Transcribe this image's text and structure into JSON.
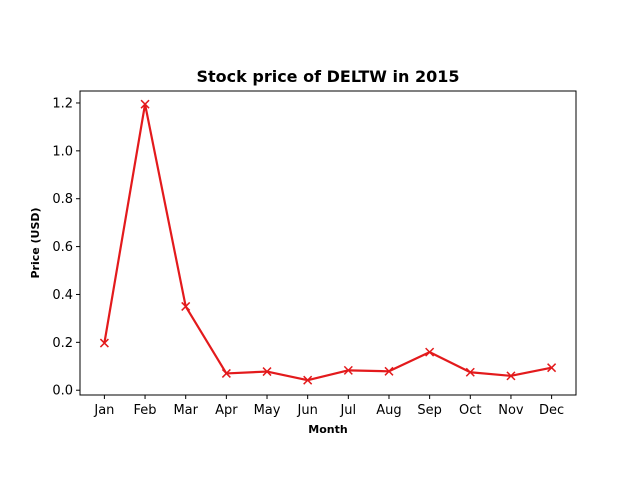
{
  "chart_data": {
    "type": "line",
    "title": "Stock price of DELTW in 2015",
    "xlabel": "Month",
    "ylabel": "Price (USD)",
    "categories": [
      "Jan",
      "Feb",
      "Mar",
      "Apr",
      "May",
      "Jun",
      "Jul",
      "Aug",
      "Sep",
      "Oct",
      "Nov",
      "Dec"
    ],
    "series": [
      {
        "values": [
          0.197,
          1.195,
          0.35,
          0.07,
          0.078,
          0.042,
          0.083,
          0.079,
          0.159,
          0.075,
          0.06,
          0.094
        ]
      }
    ],
    "ylim": [
      -0.02,
      1.25
    ],
    "yticks": [
      "0.0",
      "0.2",
      "0.4",
      "0.6",
      "0.8",
      "1.0",
      "1.2"
    ],
    "ytick_values": [
      0.0,
      0.2,
      0.4,
      0.6,
      0.8,
      1.0,
      1.2
    ],
    "line_color": "#e31a1c",
    "marker": "x",
    "grid": false
  }
}
